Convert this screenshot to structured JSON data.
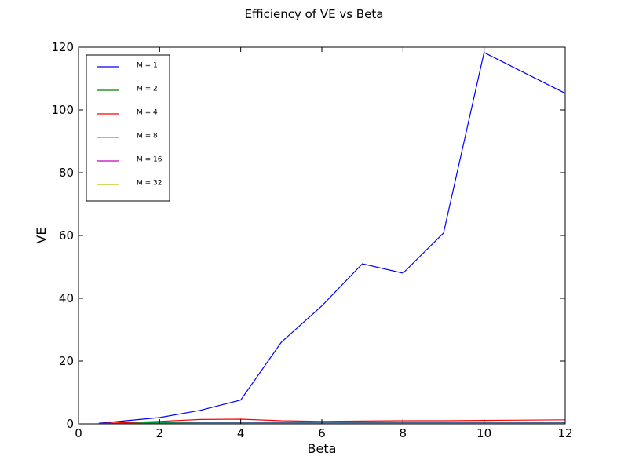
{
  "chart_data": {
    "type": "line",
    "title": "Efficiency of VE vs Beta",
    "xlabel": "Beta",
    "ylabel": "VE",
    "xlim": [
      0,
      12
    ],
    "ylim": [
      0,
      120
    ],
    "x_ticks": [
      "0",
      "2",
      "4",
      "6",
      "8",
      "10",
      "12"
    ],
    "y_ticks": [
      "0",
      "20",
      "40",
      "60",
      "80",
      "100",
      "120"
    ],
    "x_tick_values": [
      0,
      2,
      4,
      6,
      8,
      10,
      12
    ],
    "y_tick_values": [
      0,
      20,
      40,
      60,
      80,
      100,
      120
    ],
    "grid": false,
    "legend_position": "top-left",
    "series": [
      {
        "name": "M = 1",
        "color": "#0000ff",
        "x": [
          0.5,
          2,
          3,
          4,
          5,
          6,
          7,
          8,
          9,
          10,
          12
        ],
        "y": [
          0.2,
          2.0,
          4.3,
          7.6,
          26.0,
          37.6,
          51.0,
          48.0,
          60.8,
          118.3,
          105.3
        ]
      },
      {
        "name": "M = 2",
        "color": "#008000",
        "x": [
          0.5,
          2,
          3,
          4,
          5,
          6,
          7,
          8,
          9,
          10,
          12
        ],
        "y": [
          0.1,
          0.4,
          0.5,
          0.5,
          0.4,
          0.4,
          0.4,
          0.4,
          0.4,
          0.4,
          0.4
        ]
      },
      {
        "name": "M = 4",
        "color": "#ff0000",
        "x": [
          0.5,
          2,
          3,
          4,
          5,
          6,
          7,
          8,
          9,
          10,
          12
        ],
        "y": [
          0.1,
          0.8,
          1.4,
          1.5,
          1.0,
          0.8,
          0.9,
          1.0,
          1.0,
          1.1,
          1.3
        ]
      },
      {
        "name": "M = 8",
        "color": "#00bfbf",
        "x": [
          0.5,
          2,
          3,
          4,
          5,
          6,
          7,
          8,
          9,
          10,
          12
        ],
        "y": [
          0.05,
          0.2,
          0.3,
          0.3,
          0.3,
          0.3,
          0.3,
          0.3,
          0.3,
          0.3,
          0.3
        ]
      },
      {
        "name": "M = 16",
        "color": "#bf00bf",
        "x": [
          0.5,
          2,
          3,
          4,
          5,
          6,
          7,
          8,
          9,
          10,
          12
        ],
        "y": [
          0.05,
          0.1,
          0.2,
          0.2,
          0.2,
          0.2,
          0.2,
          0.2,
          0.2,
          0.2,
          0.2
        ]
      },
      {
        "name": "M = 32",
        "color": "#bfbf00",
        "x": [
          0.5,
          2,
          3,
          4,
          5,
          6,
          7,
          8,
          9,
          10,
          12
        ],
        "y": [
          0.02,
          0.05,
          0.1,
          0.1,
          0.1,
          0.1,
          0.1,
          0.1,
          0.1,
          0.1,
          0.1
        ]
      }
    ]
  }
}
